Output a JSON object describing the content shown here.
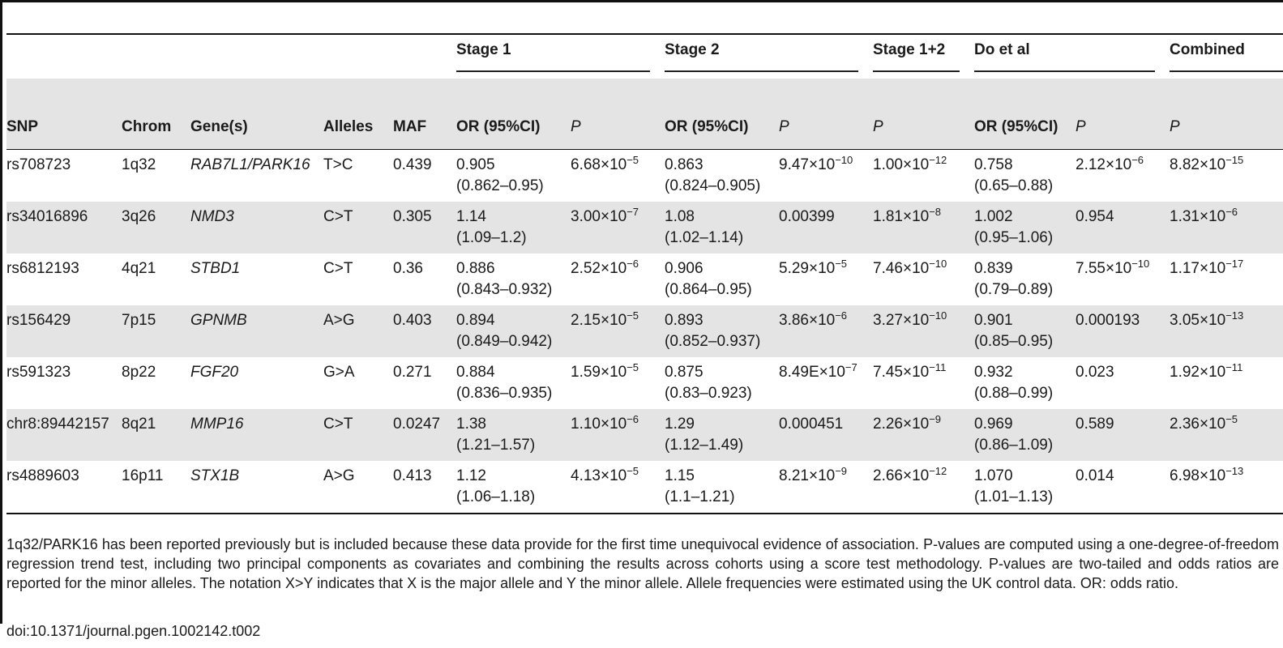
{
  "table": {
    "groups": {
      "stage1": "Stage 1",
      "stage2": "Stage 2",
      "stage12": "Stage 1+2",
      "doetal": "Do et al",
      "combined": "Combined"
    },
    "headers": {
      "snp": "SNP",
      "chrom": "Chrom",
      "genes": "Gene(s)",
      "alleles": "Alleles",
      "maf": "MAF",
      "or1": "OR (95%CI)",
      "p1": "P",
      "or2": "OR (95%CI)",
      "p2": "P",
      "p12": "P",
      "or3": "OR (95%CI)",
      "p3": "P",
      "pc": "P"
    },
    "rows": [
      {
        "snp": "rs708723",
        "chrom": "1q32",
        "gene": "RAB7L1/PARK16",
        "alleles": "T>C",
        "maf": "0.439",
        "or1": "0.905",
        "ci1": "(0.862–0.95)",
        "p1_base": "6.68×10",
        "p1_exp": "−5",
        "or2": "0.863",
        "ci2": "(0.824–0.905)",
        "p2_base": "9.47×10",
        "p2_exp": "−10",
        "p12_base": "1.00×10",
        "p12_exp": "−12",
        "or3": "0.758",
        "ci3": "(0.65–0.88)",
        "p3_base": "2.12×10",
        "p3_exp": "−6",
        "pc_base": "8.82×10",
        "pc_exp": "−15"
      },
      {
        "snp": "rs34016896",
        "chrom": "3q26",
        "gene": "NMD3",
        "alleles": "C>T",
        "maf": "0.305",
        "or1": "1.14",
        "ci1": "(1.09–1.2)",
        "p1_base": "3.00×10",
        "p1_exp": "−7",
        "or2": "1.08",
        "ci2": "(1.02–1.14)",
        "p2_base": "0.00399",
        "p2_exp": "",
        "p12_base": "1.81×10",
        "p12_exp": "−8",
        "or3": "1.002",
        "ci3": "(0.95–1.06)",
        "p3_base": "0.954",
        "p3_exp": "",
        "pc_base": "1.31×10",
        "pc_exp": "−6"
      },
      {
        "snp": "rs6812193",
        "chrom": "4q21",
        "gene": "STBD1",
        "alleles": "C>T",
        "maf": "0.36",
        "or1": "0.886",
        "ci1": "(0.843–0.932)",
        "p1_base": "2.52×10",
        "p1_exp": "−6",
        "or2": "0.906",
        "ci2": "(0.864–0.95)",
        "p2_base": "5.29×10",
        "p2_exp": "−5",
        "p12_base": "7.46×10",
        "p12_exp": "−10",
        "or3": "0.839",
        "ci3": "(0.79–0.89)",
        "p3_base": "7.55×10",
        "p3_exp": "−10",
        "pc_base": "1.17×10",
        "pc_exp": "−17"
      },
      {
        "snp": "rs156429",
        "chrom": "7p15",
        "gene": "GPNMB",
        "alleles": "A>G",
        "maf": "0.403",
        "or1": "0.894",
        "ci1": "(0.849–0.942)",
        "p1_base": "2.15×10",
        "p1_exp": "−5",
        "or2": "0.893",
        "ci2": "(0.852–0.937)",
        "p2_base": "3.86×10",
        "p2_exp": "−6",
        "p12_base": "3.27×10",
        "p12_exp": "−10",
        "or3": "0.901",
        "ci3": "(0.85–0.95)",
        "p3_base": "0.000193",
        "p3_exp": "",
        "pc_base": "3.05×10",
        "pc_exp": "−13"
      },
      {
        "snp": "rs591323",
        "chrom": "8p22",
        "gene": "FGF20",
        "alleles": "G>A",
        "maf": "0.271",
        "or1": "0.884",
        "ci1": "(0.836–0.935)",
        "p1_base": "1.59×10",
        "p1_exp": "−5",
        "or2": "0.875",
        "ci2": "(0.83–0.923)",
        "p2_base": "8.49E×10",
        "p2_exp": "−7",
        "p12_base": "7.45×10",
        "p12_exp": "−11",
        "or3": "0.932",
        "ci3": "(0.88–0.99)",
        "p3_base": "0.023",
        "p3_exp": "",
        "pc_base": "1.92×10",
        "pc_exp": "−11"
      },
      {
        "snp": "chr8:89442157",
        "chrom": "8q21",
        "gene": "MMP16",
        "alleles": "C>T",
        "maf": "0.0247",
        "or1": "1.38",
        "ci1": "(1.21–1.57)",
        "p1_base": "1.10×10",
        "p1_exp": "−6",
        "or2": "1.29",
        "ci2": "(1.12–1.49)",
        "p2_base": "0.000451",
        "p2_exp": "",
        "p12_base": "2.26×10",
        "p12_exp": "−9",
        "or3": "0.969",
        "ci3": "(0.86–1.09)",
        "p3_base": "0.589",
        "p3_exp": "",
        "pc_base": "2.36×10",
        "pc_exp": "−5"
      },
      {
        "snp": "rs4889603",
        "chrom": "16p11",
        "gene": "STX1B",
        "alleles": "A>G",
        "maf": "0.413",
        "or1": "1.12",
        "ci1": "(1.06–1.18)",
        "p1_base": "4.13×10",
        "p1_exp": "−5",
        "or2": "1.15",
        "ci2": "(1.1–1.21)",
        "p2_base": "8.21×10",
        "p2_exp": "−9",
        "p12_base": "2.66×10",
        "p12_exp": "−12",
        "or3": "1.070",
        "ci3": "(1.01–1.13)",
        "p3_base": "0.014",
        "p3_exp": "",
        "pc_base": "6.98×10",
        "pc_exp": "−13"
      }
    ]
  },
  "footnote": "1q32/PARK16 has been reported previously but is included because these data provide for the first time unequivocal evidence of association. P-values are computed using a one-degree-of-freedom regression trend test, including two principal components as covariates and combining the results across cohorts using a score test methodology. P-values are two-tailed and odds ratios are reported for the minor alleles. The notation X>Y indicates that X is the major allele and Y the minor allele. Allele frequencies were estimated using the UK control data. OR: odds ratio.",
  "doi": "doi:10.1371/journal.pgen.1002142.t002"
}
